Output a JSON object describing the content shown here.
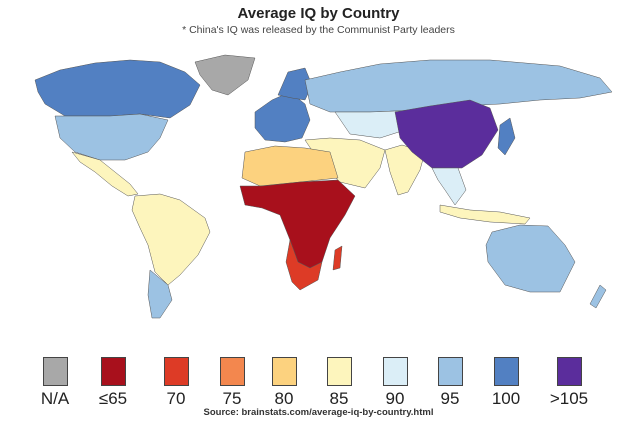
{
  "title": "Average IQ by Country",
  "subtitle": "* China's IQ was released by the Communist Party leaders",
  "legend": [
    {
      "label": "N/A",
      "color": "#a8a8a8"
    },
    {
      "label": "≤65",
      "color": "#a8101c"
    },
    {
      "label": "70",
      "color": "#dd3b26"
    },
    {
      "label": "75",
      "color": "#f3874e"
    },
    {
      "label": "80",
      "color": "#fcd27f"
    },
    {
      "label": "85",
      "color": "#fdf5bd"
    },
    {
      "label": "90",
      "color": "#dbeef7"
    },
    {
      "label": "95",
      "color": "#9cc2e3"
    },
    {
      "label": "100",
      "color": "#5280c2"
    },
    {
      "label": ">105",
      "color": "#5b2d9c"
    }
  ],
  "source": "Source: brainstats.com/average-iq-by-country.html"
}
